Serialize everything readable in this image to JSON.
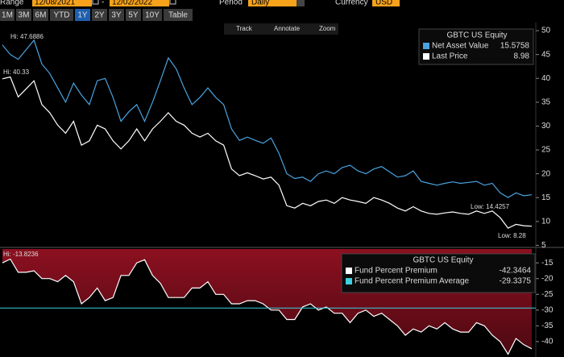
{
  "toolbar": {
    "range_label": "Range",
    "start": "12/08/2021",
    "range_separator": "-",
    "end": "12/02/2022",
    "period_label": "Period",
    "period": "Daily",
    "currency_label": "Currency",
    "currency": "USD"
  },
  "range_buttons": [
    "1M",
    "3M",
    "6M",
    "YTD",
    "1Y",
    "2Y",
    "3Y",
    "5Y",
    "10Y",
    "Table"
  ],
  "tools": [
    "Track",
    "Annotate",
    "Zoom"
  ],
  "chart_data": [
    {
      "type": "line",
      "title": "GBTC US Equity",
      "ylim": [
        4.9,
        51.7
      ],
      "yticks": [
        50,
        45,
        40,
        35,
        30,
        25,
        20,
        15,
        10,
        5
      ],
      "series": [
        {
          "name": "Net Asset Value",
          "color": "#4aa3df",
          "last": 15.5758,
          "values": [
            47,
            45,
            44,
            46,
            48,
            43,
            41,
            38,
            35,
            39,
            36.5,
            34.5,
            39.5,
            40,
            36,
            31,
            33,
            34.5,
            31,
            35,
            39.5,
            44.3,
            42,
            38,
            34.5,
            36,
            38,
            36,
            34.5,
            29.4,
            27,
            27.7,
            27,
            26.4,
            27.5,
            24.3,
            20,
            19,
            19.3,
            18.4,
            20,
            20.6,
            20,
            21.3,
            21.8,
            20.6,
            20,
            21,
            21.5,
            20.4,
            19.3,
            19.6,
            20.6,
            18.4,
            18,
            17.6,
            18,
            18.3,
            18,
            18.2,
            18.4,
            17.6,
            18,
            16,
            15,
            16,
            15.4,
            15.6
          ]
        },
        {
          "name": "Last Price",
          "color": "#ffffff",
          "last": 8.98,
          "values": [
            39.9,
            40.3,
            36.1,
            37.8,
            39.5,
            34.5,
            32.8,
            30.2,
            28.5,
            31,
            26,
            26.9,
            30.2,
            29.4,
            26.9,
            25.2,
            26.9,
            29.4,
            26.9,
            29.4,
            31,
            32.8,
            31,
            30.2,
            28.5,
            27.7,
            28.5,
            26.9,
            26,
            21,
            19.6,
            20.2,
            19.6,
            18.9,
            19.3,
            17.6,
            13.3,
            12.8,
            13.8,
            13.3,
            14.2,
            14.5,
            13.8,
            15,
            14.5,
            14.2,
            13.8,
            15,
            14.5,
            13.8,
            12.8,
            12.2,
            13.1,
            12.2,
            11.7,
            11.5,
            11.8,
            12,
            11.7,
            11.5,
            12.2,
            11.7,
            12.2,
            10.8,
            8.6,
            9.4,
            9.1,
            9
          ]
        }
      ],
      "annotations": [
        "Hi: 47.6886",
        "Hi: 40.33",
        "Low: 14.4257",
        "Low: 8.28"
      ]
    },
    {
      "type": "area",
      "title": "GBTC US Equity",
      "ylim": [
        -44.9,
        -10.6
      ],
      "yticks": [
        -15,
        -20,
        -25,
        -30,
        -35,
        -40
      ],
      "series": [
        {
          "name": "Fund Percent Premium",
          "color": "#ffffff",
          "fill": "#8c1020",
          "last": -42.3464,
          "values": [
            -15,
            -13.8,
            -18,
            -18,
            -17.5,
            -20,
            -20,
            -21,
            -19,
            -21,
            -28,
            -26,
            -23,
            -27,
            -26,
            -19,
            -19,
            -15,
            -14,
            -19,
            -21.5,
            -26,
            -26,
            -26,
            -23,
            -23,
            -21,
            -25,
            -25,
            -28,
            -28,
            -27,
            -27,
            -28,
            -30,
            -30,
            -33,
            -33,
            -29,
            -28,
            -30,
            -29,
            -31,
            -31,
            -34,
            -31,
            -30,
            -32,
            -31,
            -33,
            -35,
            -38,
            -36,
            -37,
            -35,
            -36,
            -34,
            -36,
            -37,
            -37,
            -34,
            -35,
            -38,
            -40,
            -44,
            -39,
            -41,
            -42.3
          ]
        }
      ],
      "reference_lines": [
        {
          "name": "Fund Percent Premium Average",
          "color": "#3fd0e0",
          "value": -29.3375
        }
      ],
      "annotations": [
        "Hi: -13.8236"
      ]
    }
  ]
}
